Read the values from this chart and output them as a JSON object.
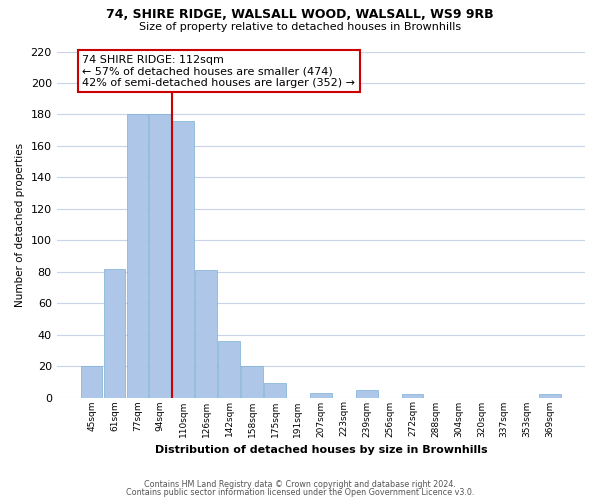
{
  "title1": "74, SHIRE RIDGE, WALSALL WOOD, WALSALL, WS9 9RB",
  "title2": "Size of property relative to detached houses in Brownhills",
  "xlabel": "Distribution of detached houses by size in Brownhills",
  "ylabel": "Number of detached properties",
  "bar_labels": [
    "45sqm",
    "61sqm",
    "77sqm",
    "94sqm",
    "110sqm",
    "126sqm",
    "142sqm",
    "158sqm",
    "175sqm",
    "191sqm",
    "207sqm",
    "223sqm",
    "239sqm",
    "256sqm",
    "272sqm",
    "288sqm",
    "304sqm",
    "320sqm",
    "337sqm",
    "353sqm",
    "369sqm"
  ],
  "bar_values": [
    20,
    82,
    180,
    180,
    176,
    81,
    36,
    20,
    9,
    0,
    3,
    0,
    5,
    0,
    2,
    0,
    0,
    0,
    0,
    0,
    2
  ],
  "bar_color": "#aec6e8",
  "vline_color": "#cc0000",
  "vline_x": 3.5,
  "annotation_text": "74 SHIRE RIDGE: 112sqm\n← 57% of detached houses are smaller (474)\n42% of semi-detached houses are larger (352) →",
  "annotation_box_color": "#ffffff",
  "annotation_box_edge": "#cc0000",
  "ylim": [
    0,
    220
  ],
  "yticks": [
    0,
    20,
    40,
    60,
    80,
    100,
    120,
    140,
    160,
    180,
    200,
    220
  ],
  "footer1": "Contains HM Land Registry data © Crown copyright and database right 2024.",
  "footer2": "Contains public sector information licensed under the Open Government Licence v3.0.",
  "bg_color": "#ffffff",
  "grid_color": "#c8d4e8"
}
